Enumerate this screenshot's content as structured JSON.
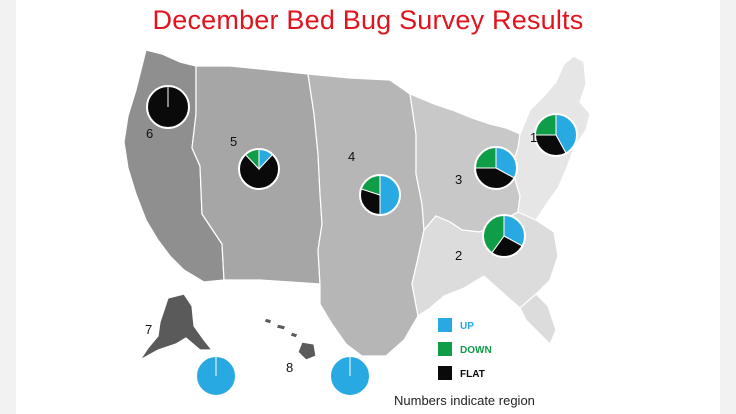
{
  "title": "December Bed Bug Survey Results",
  "footnote": "Numbers indicate region",
  "legend": [
    {
      "label": "UP",
      "color": "#29a9e1"
    },
    {
      "label": "DOWN",
      "color": "#0f9d48"
    },
    {
      "label": "FLAT",
      "color": "#0a0a0a"
    }
  ],
  "region_colors": {
    "west": "#8f8f8f",
    "mountain": "#a6a6a6",
    "plains": "#b6b6b6",
    "midwest": "#c8c8c8",
    "south": "#dcdcdc",
    "northeast": "#e6e6e6",
    "alaska": "#5a5a5a",
    "hawaii": "#5a5a5a"
  },
  "regions": [
    {
      "id": "1",
      "label": "1",
      "shares": {
        "up": 0.42,
        "down": 0.25,
        "flat": 0.33
      }
    },
    {
      "id": "2",
      "label": "2",
      "shares": {
        "up": 0.33,
        "down": 0.4,
        "flat": 0.27
      }
    },
    {
      "id": "3",
      "label": "3",
      "shares": {
        "up": 0.33,
        "down": 0.25,
        "flat": 0.42
      }
    },
    {
      "id": "4",
      "label": "4",
      "shares": {
        "up": 0.5,
        "down": 0.2,
        "flat": 0.3
      }
    },
    {
      "id": "5",
      "label": "5",
      "shares": {
        "up": 0.12,
        "down": 0.12,
        "flat": 0.76
      }
    },
    {
      "id": "6",
      "label": "6",
      "shares": {
        "up": 0.0,
        "down": 0.0,
        "flat": 1.0
      }
    },
    {
      "id": "7",
      "label": "7",
      "shares": {
        "up": 1.0,
        "down": 0.0,
        "flat": 0.0
      }
    },
    {
      "id": "8",
      "label": "8",
      "shares": {
        "up": 1.0,
        "down": 0.0,
        "flat": 0.0
      }
    }
  ]
}
